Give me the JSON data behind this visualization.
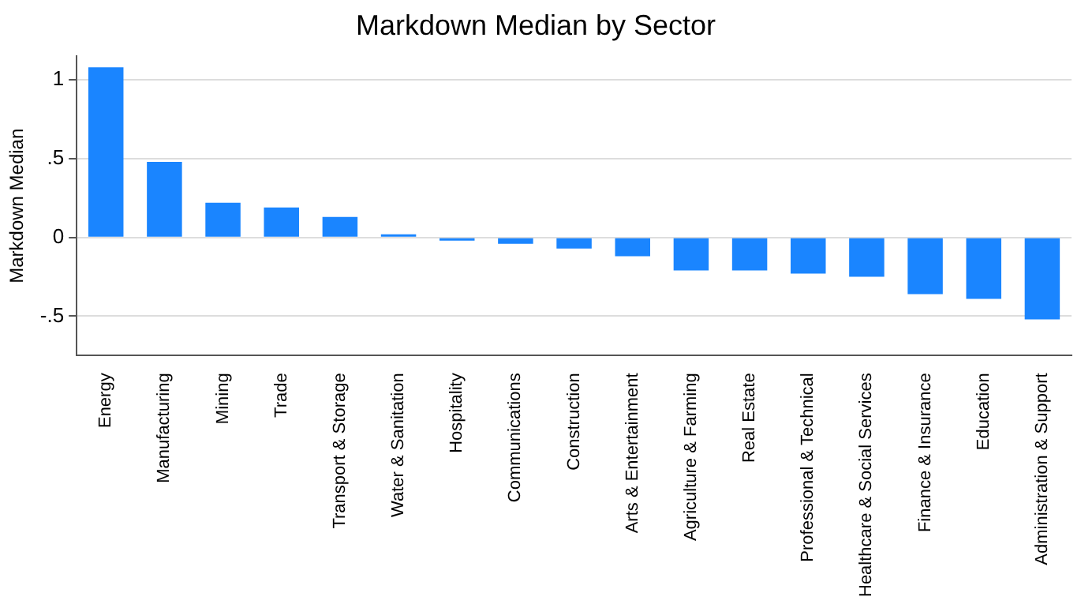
{
  "chart_data": {
    "type": "bar",
    "title": "Markdown Median by Sector",
    "ylabel": "Markdown Median",
    "categories": [
      "Energy",
      "Manufacturing",
      "Mining",
      "Trade",
      "Transport & Storage",
      "Water & Sanitation",
      "Hospitality",
      "Communications",
      "Construction",
      "Arts & Entertainment",
      "Agriculture & Farming",
      "Real Estate",
      "Professional & Technical",
      "Healthcare & Social Services",
      "Finance & Insurance",
      "Education",
      "Administration & Support"
    ],
    "values": [
      1.08,
      0.48,
      0.22,
      0.19,
      0.13,
      0.02,
      -0.02,
      -0.04,
      -0.07,
      -0.12,
      -0.21,
      -0.21,
      -0.23,
      -0.25,
      -0.36,
      -0.39,
      -0.52
    ],
    "color": "#1a85ff",
    "ylim": [
      -0.75,
      1.15
    ],
    "yticks": [
      {
        "value": -0.5,
        "label": "-.5"
      },
      {
        "value": 0,
        "label": "0"
      },
      {
        "value": 0.5,
        "label": ".5"
      },
      {
        "value": 1,
        "label": "1"
      }
    ],
    "grid": "y",
    "legend": false
  }
}
